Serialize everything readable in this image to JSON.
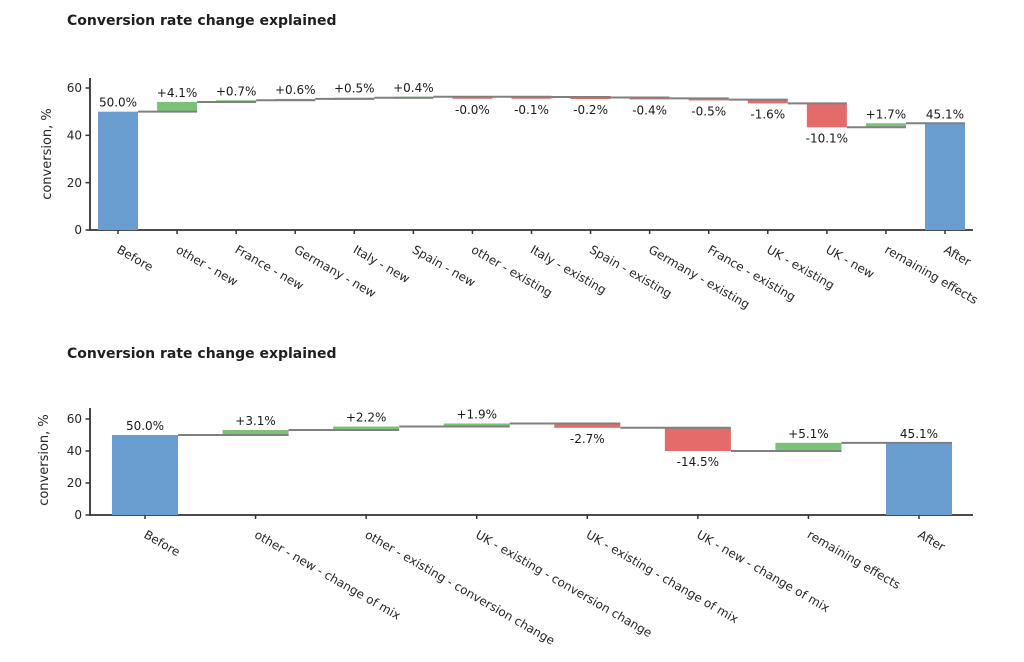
{
  "chart_data": [
    {
      "type": "bar",
      "subtype": "waterfall",
      "title": "Conversion rate change explained",
      "xlabel": "",
      "ylabel": "conversion, %",
      "ylim": [
        0,
        64
      ],
      "yticks": [
        0,
        20,
        40,
        60
      ],
      "grid": false,
      "legend": false,
      "categories": [
        "Before",
        "other - new",
        "France - new",
        "Germany - new",
        "Italy - new",
        "Spain - new",
        "other - existing",
        "Italy - existing",
        "Spain - existing",
        "Germany - existing",
        "France - existing",
        "UK - existing",
        "UK - new",
        "remaining effects",
        "After"
      ],
      "values": [
        50.0,
        4.1,
        0.7,
        0.6,
        0.5,
        0.4,
        -0.0,
        -0.1,
        -0.2,
        -0.4,
        -0.5,
        -1.6,
        -10.1,
        1.7,
        45.1
      ],
      "value_labels": [
        "50.0%",
        "+4.1%",
        "+0.7%",
        "+0.6%",
        "+0.5%",
        "+0.4%",
        "-0.0%",
        "-0.1%",
        "-0.2%",
        "-0.4%",
        "-0.5%",
        "-1.6%",
        "-10.1%",
        "+1.7%",
        "45.1%"
      ],
      "kinds": [
        "total",
        "increase",
        "increase",
        "increase",
        "increase",
        "increase",
        "decrease",
        "decrease",
        "decrease",
        "decrease",
        "decrease",
        "decrease",
        "decrease",
        "increase",
        "total"
      ],
      "start_level": 50.0,
      "end_level": 45.1,
      "colors": {
        "total": "#6B9ED0",
        "increase": "#79C277",
        "decrease": "#E56B6A",
        "connector": "#808080",
        "axis": "#333333",
        "text": "#262626"
      }
    },
    {
      "type": "bar",
      "subtype": "waterfall",
      "title": "Conversion rate change explained",
      "xlabel": "",
      "ylabel": "conversion, %",
      "ylim": [
        0,
        67
      ],
      "yticks": [
        0,
        20,
        40,
        60
      ],
      "grid": false,
      "legend": false,
      "categories": [
        "Before",
        "other - new - change of mix",
        "other - existing - conversion change",
        "UK - existing - conversion change",
        "UK - existing - change of mix",
        "UK - new - change of mix",
        "remaining effects",
        "After"
      ],
      "values": [
        50.0,
        3.1,
        2.2,
        1.9,
        -2.7,
        -14.5,
        5.1,
        45.1
      ],
      "value_labels": [
        "50.0%",
        "+3.1%",
        "+2.2%",
        "+1.9%",
        "-2.7%",
        "-14.5%",
        "+5.1%",
        "45.1%"
      ],
      "kinds": [
        "total",
        "increase",
        "increase",
        "increase",
        "decrease",
        "decrease",
        "increase",
        "total"
      ],
      "start_level": 50.0,
      "end_level": 45.1,
      "colors": {
        "total": "#6B9ED0",
        "increase": "#79C277",
        "decrease": "#E56B6A",
        "connector": "#808080",
        "axis": "#333333",
        "text": "#262626"
      }
    }
  ]
}
